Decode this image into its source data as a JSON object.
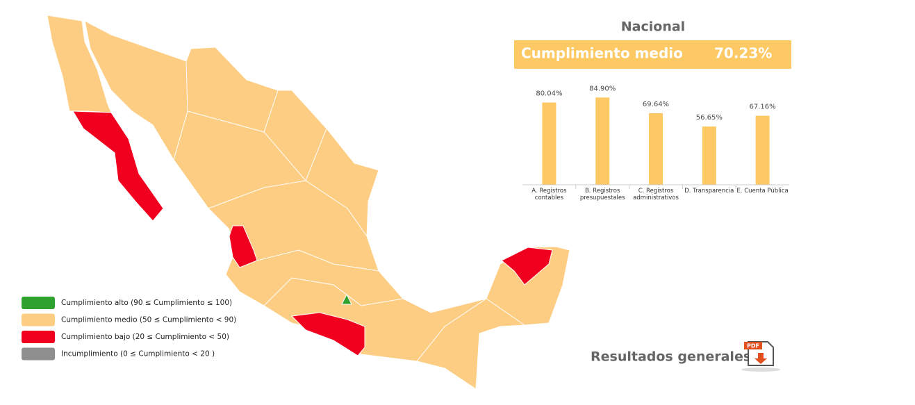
{
  "header": {
    "title": "Nacional",
    "summary_label": "Cumplimiento medio",
    "summary_value": "70.23%"
  },
  "chart_data": {
    "type": "bar",
    "categories": [
      "A. Registros contables",
      "B. Registros presupuestales",
      "C. Registros administrativos",
      "D. Transparencia",
      "E. Cuenta Pública"
    ],
    "values": [
      80.04,
      84.9,
      69.64,
      56.65,
      67.16
    ],
    "value_labels": [
      "80.04%",
      "84.90%",
      "69.64%",
      "56.65%",
      "67.16%"
    ],
    "color": "#fdc964",
    "ylim": [
      0,
      100
    ]
  },
  "legend": [
    {
      "label": "Cumplimiento alto (90 ≤ Cumplimiento ≤ 100)",
      "color": "#2ea12e"
    },
    {
      "label": "Cumplimiento medio (50 ≤ Cumplimiento  < 90)",
      "color": "#fdcd83"
    },
    {
      "label": "Cumplimiento bajo (20 ≤ Cumplimiento < 50)",
      "color": "#f0001e"
    },
    {
      "label": "Incumplimiento (0 ≤ Cumplimiento < 20 )",
      "color": "#8f8f8f"
    }
  ],
  "footer": {
    "link": "Resultados generales",
    "icon": "PDF"
  }
}
